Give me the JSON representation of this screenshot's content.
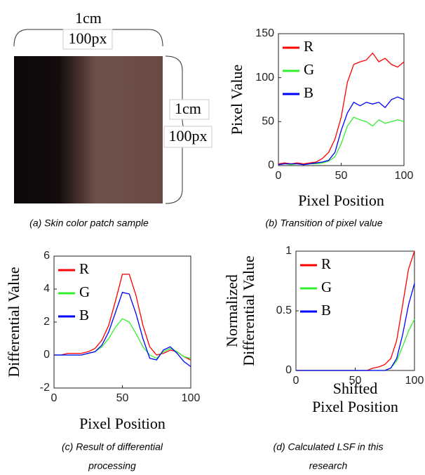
{
  "image_panel": {
    "top_labels": [
      "1cm",
      "100px"
    ],
    "side_labels": [
      "1cm",
      "100px"
    ],
    "caption": [
      "(a) Skin color patch sample"
    ]
  },
  "chart_data": [
    {
      "type": "line",
      "caption": [
        "(b) Transition of pixel value"
      ],
      "ylabel": "Pixel Value",
      "xlabel": "Pixel Position",
      "x": [
        0,
        5,
        10,
        15,
        20,
        25,
        30,
        35,
        40,
        45,
        50,
        55,
        60,
        65,
        70,
        75,
        80,
        85,
        90,
        95,
        100
      ],
      "series": [
        {
          "name": "R",
          "color": "#ff0000",
          "values": [
            2,
            3,
            2,
            3,
            2,
            3,
            4,
            8,
            15,
            30,
            55,
            95,
            115,
            118,
            120,
            128,
            118,
            122,
            115,
            112,
            118
          ]
        },
        {
          "name": "G",
          "color": "#33ee33",
          "values": [
            1,
            2,
            1,
            2,
            1,
            2,
            2,
            3,
            5,
            10,
            25,
            45,
            55,
            52,
            50,
            45,
            52,
            48,
            50,
            52,
            50
          ]
        },
        {
          "name": "B",
          "color": "#0000ff",
          "values": [
            1,
            2,
            2,
            2,
            1,
            2,
            3,
            4,
            6,
            15,
            40,
            60,
            72,
            68,
            72,
            70,
            72,
            66,
            75,
            78,
            75
          ]
        }
      ],
      "xlim": [
        0,
        100
      ],
      "xticks": [
        0,
        50,
        100
      ],
      "ylim": [
        0,
        150
      ],
      "yticks": [
        0,
        50,
        100,
        150
      ]
    },
    {
      "type": "line",
      "caption": [
        "(c) Result of differential",
        "processing"
      ],
      "ylabel": "Differential Value",
      "xlabel": "Pixel Position",
      "x": [
        0,
        5,
        10,
        15,
        20,
        25,
        30,
        35,
        40,
        45,
        50,
        55,
        60,
        65,
        70,
        75,
        80,
        85,
        90,
        95,
        100
      ],
      "series": [
        {
          "name": "R",
          "color": "#ff0000",
          "values": [
            0,
            0,
            0.1,
            0.1,
            0.1,
            0.2,
            0.4,
            0.9,
            1.8,
            3.3,
            4.9,
            4.9,
            3.6,
            1.8,
            0.5,
            0,
            0.1,
            0.3,
            0.2,
            -0.1,
            -0.3
          ]
        },
        {
          "name": "G",
          "color": "#33ee33",
          "values": [
            0,
            0,
            0,
            0,
            0,
            0.1,
            0.2,
            0.5,
            1.0,
            1.7,
            2.2,
            2.0,
            1.3,
            0.5,
            0,
            -0.2,
            0.2,
            0.4,
            0.2,
            -0.1,
            -0.2
          ]
        },
        {
          "name": "B",
          "color": "#0000ff",
          "values": [
            0,
            0,
            0,
            0,
            0,
            0.1,
            0.2,
            0.6,
            1.4,
            2.6,
            3.8,
            3.7,
            2.5,
            1.0,
            -0.2,
            -0.3,
            0.3,
            0.5,
            0.1,
            -0.4,
            -0.7
          ]
        }
      ],
      "xlim": [
        0,
        100
      ],
      "xticks": [
        0,
        50,
        100
      ],
      "ylim": [
        -2,
        6
      ],
      "yticks": [
        -2,
        0,
        2,
        4,
        6
      ]
    },
    {
      "type": "line",
      "caption": [
        "(d) Calculated LSF in this",
        "research"
      ],
      "ylabel": [
        "Normalized",
        "Differential Value"
      ],
      "xlabel": [
        "Shifted",
        "Pixel Position"
      ],
      "x": [
        0,
        5,
        10,
        15,
        20,
        25,
        30,
        35,
        40,
        45,
        50,
        55,
        60,
        65,
        70,
        75,
        80,
        85,
        90,
        95,
        100
      ],
      "series": [
        {
          "name": "R",
          "color": "#ff0000",
          "values": [
            0,
            0,
            0,
            0,
            0,
            0,
            0,
            0,
            0,
            0,
            0,
            0,
            0,
            0.02,
            0.03,
            0.05,
            0.1,
            0.25,
            0.55,
            0.85,
            1.0
          ]
        },
        {
          "name": "G",
          "color": "#33ee33",
          "values": [
            0,
            0,
            0,
            0,
            0,
            0,
            0,
            0,
            0,
            0,
            0,
            0,
            0,
            0,
            0,
            0,
            0.02,
            0.08,
            0.2,
            0.33,
            0.43
          ]
        },
        {
          "name": "B",
          "color": "#0000ff",
          "values": [
            0,
            0,
            0,
            0,
            0,
            0,
            0,
            0,
            0,
            0,
            0,
            0,
            0,
            0,
            0,
            0,
            0.02,
            0.1,
            0.3,
            0.55,
            0.73
          ]
        }
      ],
      "xlim": [
        0,
        100
      ],
      "xticks": [
        0,
        50,
        100
      ],
      "ylim": [
        0,
        1
      ],
      "yticks": [
        0,
        0.5,
        1
      ]
    }
  ]
}
